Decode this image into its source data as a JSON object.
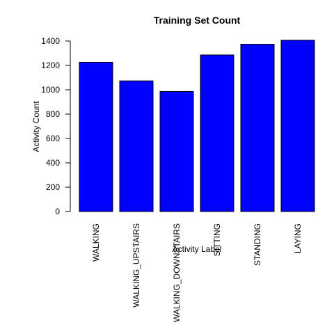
{
  "chart_data": {
    "type": "bar",
    "title": "Training Set Count",
    "xlabel": "Activity Label",
    "ylabel": "Activity Count",
    "categories": [
      "WALKING",
      "WALKING_UPSTAIRS",
      "WALKING_DOWNSTAIRS",
      "SITTING",
      "STANDING",
      "LAYING"
    ],
    "values": [
      1226,
      1073,
      986,
      1286,
      1374,
      1407
    ],
    "ylim": [
      0,
      1400
    ],
    "yticks": [
      0,
      200,
      400,
      600,
      800,
      1000,
      1200,
      1400
    ],
    "bar_color": "#0000ff",
    "grid": false,
    "legend": "none"
  }
}
